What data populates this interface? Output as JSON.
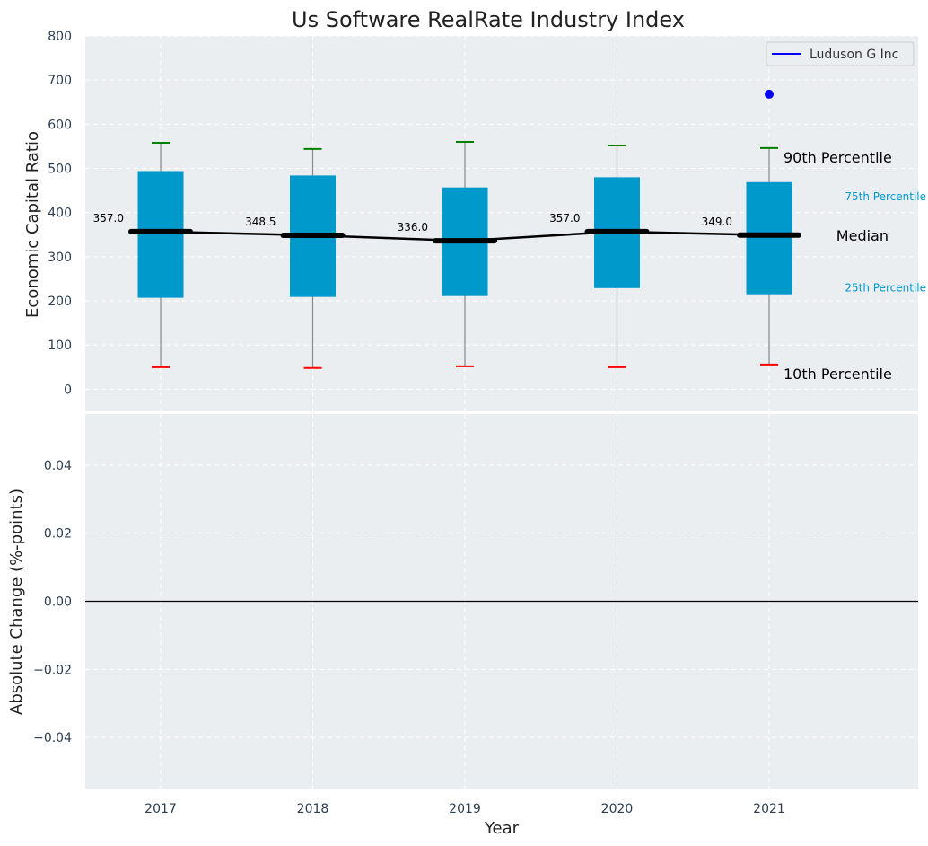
{
  "chart_data": [
    {
      "type": "box",
      "title": "Us Software RealRate Industry Index",
      "xlabel": "",
      "ylabel": "Economic Capital Ratio",
      "ylim": [
        -50,
        800
      ],
      "yticks": [
        0,
        100,
        200,
        300,
        400,
        500,
        600,
        700,
        800
      ],
      "categories": [
        "2017",
        "2018",
        "2019",
        "2020",
        "2021"
      ],
      "boxes": [
        {
          "year": "2017",
          "p10": 50,
          "p25": 207,
          "median": 357.0,
          "p75": 494,
          "p90": 558
        },
        {
          "year": "2018",
          "p10": 48,
          "p25": 209,
          "median": 348.5,
          "p75": 484,
          "p90": 544
        },
        {
          "year": "2019",
          "p10": 52,
          "p25": 211,
          "median": 336.0,
          "p75": 457,
          "p90": 560
        },
        {
          "year": "2020",
          "p10": 50,
          "p25": 229,
          "median": 357.0,
          "p75": 480,
          "p90": 552
        },
        {
          "year": "2021",
          "p10": 56,
          "p25": 215,
          "median": 349.0,
          "p75": 469,
          "p90": 546
        }
      ],
      "median_labels": [
        "357.0",
        "348.5",
        "336.0",
        "357.0",
        "349.0"
      ],
      "series": [
        {
          "name": "Luduson G Inc",
          "x": [
            "2021"
          ],
          "values": [
            668
          ],
          "color": "#0000ff"
        }
      ],
      "annotations": {
        "p90": "90th Percentile",
        "p75": "75th Percentile",
        "median": "Median",
        "p25": "25th Percentile",
        "p10": "10th Percentile"
      },
      "legend": {
        "position": "top-right",
        "label": "Luduson G Inc"
      },
      "grid": true
    },
    {
      "type": "line",
      "xlabel": "Year",
      "ylabel": "Absolute Change (%-points)",
      "ylim": [
        -0.055,
        0.055
      ],
      "yticks": [
        "0.04",
        "0.02",
        "0.00",
        "−0.02",
        "−0.04"
      ],
      "ytick_values": [
        0.04,
        0.02,
        0.0,
        -0.02,
        -0.04
      ],
      "categories": [
        "2017",
        "2018",
        "2019",
        "2020",
        "2021"
      ],
      "reference_line": 0.0,
      "grid": true
    }
  ],
  "colors": {
    "box": "#0099cc",
    "median_line": "#000000",
    "p90_cap": "#008000",
    "p10_cap": "#ff0000",
    "whisker": "#888888",
    "background": "#eaeef0",
    "grid": "#ffffff"
  }
}
